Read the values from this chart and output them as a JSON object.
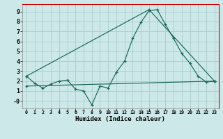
{
  "xlabel": "Humidex (Indice chaleur)",
  "bg_color": "#cce8e8",
  "grid_color": "#aacccc",
  "line_color": "#1a6858",
  "frame_color": "#cc0000",
  "xlim": [
    -0.5,
    23.5
  ],
  "ylim": [
    -0.75,
    9.75
  ],
  "xticks": [
    0,
    1,
    2,
    3,
    4,
    5,
    6,
    7,
    8,
    9,
    10,
    11,
    12,
    13,
    14,
    15,
    16,
    17,
    18,
    19,
    20,
    21,
    22,
    23
  ],
  "yticks": [
    0,
    1,
    2,
    3,
    4,
    5,
    6,
    7,
    8,
    9
  ],
  "line1_x": [
    0,
    1,
    2,
    3,
    4,
    5,
    6,
    7,
    8,
    9,
    10,
    11,
    12,
    13,
    14,
    15,
    16,
    17,
    18,
    19,
    20,
    21,
    22,
    23
  ],
  "line1_y": [
    2.5,
    1.8,
    1.3,
    1.7,
    2.0,
    2.1,
    1.2,
    1.0,
    -0.4,
    1.5,
    1.3,
    2.9,
    4.0,
    6.3,
    7.9,
    9.1,
    9.2,
    7.7,
    6.3,
    4.8,
    3.8,
    2.5,
    1.9,
    2.0
  ],
  "line2_x": [
    0,
    15,
    23
  ],
  "line2_y": [
    2.5,
    9.2,
    2.0
  ],
  "line3_x": [
    0,
    23
  ],
  "line3_y": [
    1.5,
    2.0
  ]
}
